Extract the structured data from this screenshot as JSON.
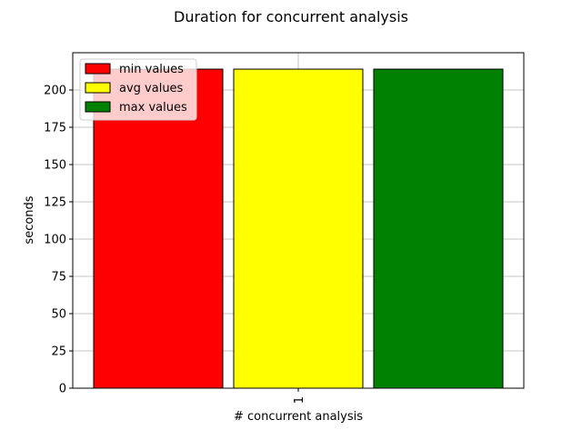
{
  "chart_data": {
    "type": "bar",
    "title": "Duration for concurrent analysis",
    "xlabel": "# concurrent analysis",
    "ylabel": "seconds",
    "categories": [
      "1"
    ],
    "series": [
      {
        "name": "min values",
        "values": [
          214
        ],
        "color": "#ff0000"
      },
      {
        "name": "avg values",
        "values": [
          214
        ],
        "color": "#ffff00"
      },
      {
        "name": "max values",
        "values": [
          214
        ],
        "color": "#008000"
      }
    ],
    "ylim": [
      0,
      225
    ],
    "yticks": [
      0,
      25,
      50,
      75,
      100,
      125,
      150,
      175,
      200
    ],
    "grid": true,
    "legend_position": "top-left"
  }
}
